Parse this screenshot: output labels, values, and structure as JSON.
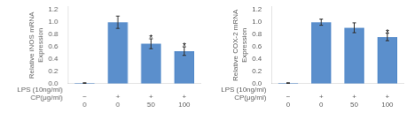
{
  "chart_data": [
    {
      "type": "bar",
      "categories": [
        [
          "−",
          "0"
        ],
        [
          "+",
          "0"
        ],
        [
          "+",
          "50"
        ],
        [
          "+",
          "100"
        ]
      ],
      "x_label": [
        "LPS (10ng/ml)",
        "CP(μg/ml)"
      ],
      "y_label": [
        "Relative iNOS mRNA",
        "Expression"
      ],
      "values": [
        0.01,
        1.0,
        0.65,
        0.53
      ],
      "errors": [
        0.005,
        0.1,
        0.08,
        0.07
      ],
      "color": "#5B8FCC",
      "ylim": [
        0,
        1.25
      ],
      "yticks": [
        {
          "value": 0,
          "label": "0.0"
        },
        0.2,
        0.4,
        0.6,
        0.8,
        {
          "value": 1,
          "label": "1.0"
        },
        1.2
      ],
      "grid": false,
      "annotations": [
        {
          "text": "*",
          "x": 2
        },
        {
          "text": "*",
          "x": 3
        }
      ]
    },
    {
      "type": "bar",
      "categories": [
        [
          "−",
          "0"
        ],
        [
          "+",
          "0"
        ],
        [
          "+",
          "50"
        ],
        [
          "+",
          "100"
        ]
      ],
      "x_label": [
        "LPS (10ng/ml)",
        "CP(μg/ml)"
      ],
      "y_label": [
        "Relative COX-2 mRNA",
        "Expression"
      ],
      "values": [
        0.01,
        1.0,
        0.91,
        0.76
      ],
      "errors": [
        0.005,
        0.05,
        0.08,
        0.06
      ],
      "color": "#5B8FCC",
      "ylim": [
        0,
        1.25
      ],
      "yticks": [
        {
          "value": 0,
          "label": "0.0"
        },
        0.2,
        0.4,
        0.6,
        0.8,
        {
          "value": 1,
          "label": "1.0"
        },
        1.2
      ],
      "grid": false,
      "annotations": [
        {
          "text": "*",
          "x": 3
        }
      ]
    }
  ]
}
